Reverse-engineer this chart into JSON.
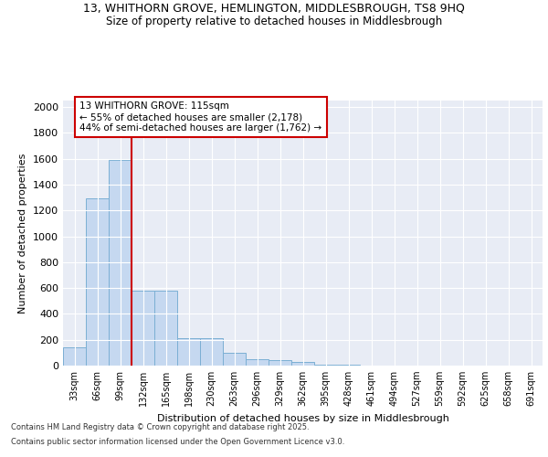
{
  "title_line1": "13, WHITHORN GROVE, HEMLINGTON, MIDDLESBROUGH, TS8 9HQ",
  "title_line2": "Size of property relative to detached houses in Middlesbrough",
  "xlabel": "Distribution of detached houses by size in Middlesbrough",
  "ylabel": "Number of detached properties",
  "categories": [
    "33sqm",
    "66sqm",
    "99sqm",
    "132sqm",
    "165sqm",
    "198sqm",
    "230sqm",
    "263sqm",
    "296sqm",
    "329sqm",
    "362sqm",
    "395sqm",
    "428sqm",
    "461sqm",
    "494sqm",
    "527sqm",
    "559sqm",
    "592sqm",
    "625sqm",
    "658sqm",
    "691sqm"
  ],
  "values": [
    140,
    1295,
    1590,
    580,
    580,
    215,
    215,
    100,
    50,
    45,
    25,
    10,
    8,
    0,
    0,
    0,
    0,
    0,
    0,
    0,
    0
  ],
  "bar_color": "#c5d8f0",
  "bar_edge_color": "#7bafd4",
  "bg_color": "#e8ecf5",
  "grid_color": "#ffffff",
  "vline_color": "#cc0000",
  "vline_x_idx": 2.5,
  "annotation_line1": "13 WHITHORN GROVE: 115sqm",
  "annotation_line2": "← 55% of detached houses are smaller (2,178)",
  "annotation_line3": "44% of semi-detached houses are larger (1,762) →",
  "annotation_box_color": "#cc0000",
  "ylim": [
    0,
    2050
  ],
  "yticks": [
    0,
    200,
    400,
    600,
    800,
    1000,
    1200,
    1400,
    1600,
    1800,
    2000
  ],
  "footer_line1": "Contains HM Land Registry data © Crown copyright and database right 2025.",
  "footer_line2": "Contains public sector information licensed under the Open Government Licence v3.0."
}
